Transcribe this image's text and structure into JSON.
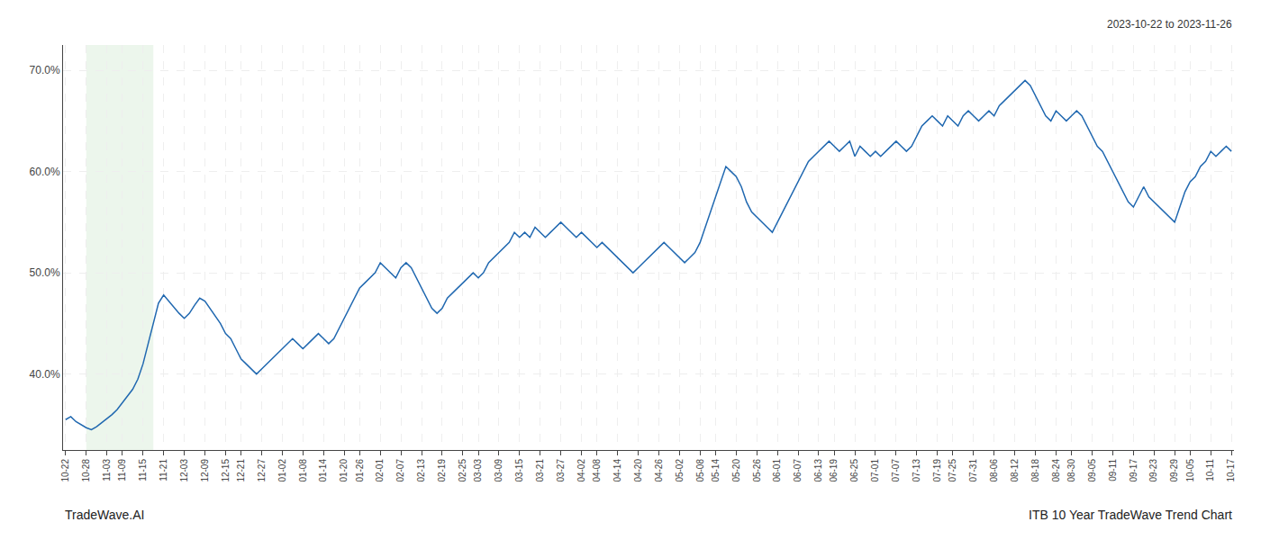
{
  "chart_data": {
    "type": "line",
    "title": "ITB 10 Year TradeWave Trend Chart",
    "subtitle": "2023-10-22 to 2023-11-26",
    "annotations": [
      "TradeWave.AI"
    ],
    "categories": [
      "10-22",
      null,
      null,
      null,
      "10-28",
      null,
      null,
      null,
      "11-03",
      null,
      null,
      "11-09",
      null,
      null,
      null,
      "11-15",
      null,
      null,
      null,
      "11-21",
      null,
      null,
      null,
      "12-03",
      null,
      null,
      null,
      "12-09",
      null,
      null,
      null,
      "12-15",
      null,
      null,
      "12-21",
      null,
      null,
      null,
      "12-27",
      null,
      null,
      null,
      "01-02",
      null,
      null,
      null,
      "01-08",
      null,
      null,
      null,
      "01-14",
      null,
      null,
      null,
      "01-20",
      null,
      null,
      "01-26",
      null,
      null,
      null,
      "02-01",
      null,
      null,
      null,
      "02-07",
      null,
      null,
      null,
      "02-13",
      null,
      null,
      null,
      "02-19",
      null,
      null,
      null,
      "02-25",
      null,
      null,
      "03-03",
      null,
      null,
      null,
      "03-09",
      null,
      null,
      null,
      "03-15",
      null,
      null,
      null,
      "03-21",
      null,
      null,
      null,
      "03-27",
      null,
      null,
      null,
      "04-02",
      null,
      null,
      "04-08",
      null,
      null,
      null,
      "04-14",
      null,
      null,
      null,
      "04-20",
      null,
      null,
      null,
      "04-26",
      null,
      null,
      null,
      "05-02",
      null,
      null,
      null,
      "05-08",
      null,
      null,
      "05-14",
      null,
      null,
      null,
      "05-20",
      null,
      null,
      null,
      "05-26",
      null,
      null,
      null,
      "06-01",
      null,
      null,
      null,
      "06-07",
      null,
      null,
      null,
      "06-13",
      null,
      null,
      "06-19",
      null,
      null,
      null,
      "06-25",
      null,
      null,
      null,
      "07-01",
      null,
      null,
      null,
      "07-07",
      null,
      null,
      null,
      "07-13",
      null,
      null,
      null,
      "07-19",
      null,
      null,
      "07-25",
      null,
      null,
      null,
      "07-31",
      null,
      null,
      null,
      "08-06",
      null,
      null,
      null,
      "08-12",
      null,
      null,
      null,
      "08-18",
      null,
      null,
      null,
      "08-24",
      null,
      null,
      "08-30",
      null,
      null,
      null,
      "09-05",
      null,
      null,
      null,
      "09-11",
      null,
      null,
      null,
      "09-17",
      null,
      null,
      null,
      "09-23",
      null,
      null,
      null,
      "09-29",
      null,
      null,
      "10-05",
      null,
      null,
      null,
      "10-11",
      null,
      null,
      null,
      "10-17"
    ],
    "values": [
      35.5,
      35.8,
      35.3,
      35.0,
      34.7,
      34.5,
      34.8,
      35.2,
      35.6,
      36.0,
      36.5,
      37.2,
      37.8,
      38.5,
      39.5,
      41.0,
      43.0,
      45.0,
      47.0,
      47.8,
      47.2,
      46.5,
      46.0,
      45.5,
      46.0,
      46.8,
      47.5,
      47.2,
      46.5,
      45.8,
      45.0,
      44.0,
      43.5,
      42.5,
      41.5,
      41.0,
      40.5,
      40.0,
      40.5,
      41.0,
      41.5,
      42.0,
      42.5,
      43.0,
      43.5,
      43.0,
      42.5,
      43.0,
      43.5,
      44.0,
      43.5,
      43.0,
      43.5,
      44.5,
      45.5,
      46.5,
      47.5,
      48.5,
      49.0,
      49.5,
      50.0,
      51.0,
      50.5,
      50.0,
      49.5,
      50.5,
      51.0,
      50.5,
      49.5,
      48.5,
      47.5,
      46.5,
      46.0,
      46.5,
      47.5,
      48.0,
      48.5,
      49.0,
      49.5,
      50.0,
      49.5,
      50.0,
      51.0,
      51.5,
      52.0,
      52.5,
      53.0,
      54.0,
      53.5,
      54.0,
      53.5,
      54.5,
      54.0,
      53.5,
      54.0,
      54.5,
      55.0,
      54.5,
      54.0,
      53.5,
      54.0,
      53.5,
      53.0,
      52.5,
      53.0,
      52.5,
      52.0,
      51.5,
      51.0,
      50.5,
      50.0,
      50.5,
      51.0,
      51.5,
      52.0,
      52.5,
      53.0,
      52.5,
      52.0,
      51.5,
      51.0,
      51.5,
      52.0,
      53.0,
      54.5,
      56.0,
      57.5,
      59.0,
      60.5,
      60.0,
      59.5,
      58.5,
      57.0,
      56.0,
      55.5,
      55.0,
      54.5,
      54.0,
      55.0,
      56.0,
      57.0,
      58.0,
      59.0,
      60.0,
      61.0,
      61.5,
      62.0,
      62.5,
      63.0,
      62.5,
      62.0,
      62.5,
      63.0,
      61.5,
      62.5,
      62.0,
      61.5,
      62.0,
      61.5,
      62.0,
      62.5,
      63.0,
      62.5,
      62.0,
      62.5,
      63.5,
      64.5,
      65.0,
      65.5,
      65.0,
      64.5,
      65.5,
      65.0,
      64.5,
      65.5,
      66.0,
      65.5,
      65.0,
      65.5,
      66.0,
      65.5,
      66.5,
      67.0,
      67.5,
      68.0,
      68.5,
      69.0,
      68.5,
      67.5,
      66.5,
      65.5,
      65.0,
      66.0,
      65.5,
      65.0,
      65.5,
      66.0,
      65.5,
      64.5,
      63.5,
      62.5,
      62.0,
      61.0,
      60.0,
      59.0,
      58.0,
      57.0,
      56.5,
      57.5,
      58.5,
      57.5,
      57.0,
      56.5,
      56.0,
      55.5,
      55.0,
      56.5,
      58.0,
      59.0,
      59.5,
      60.5,
      61.0,
      62.0,
      61.5,
      62.0,
      62.5,
      62.0
    ],
    "color": "#2068b0",
    "highlight": {
      "start": 4,
      "end": 17,
      "color": "#dff0df"
    },
    "ylim": [
      32.5,
      72.5
    ],
    "yticks": [
      {
        "value": 40.0,
        "label": "40.0%"
      },
      {
        "value": 50.0,
        "label": "50.0%"
      },
      {
        "value": 60.0,
        "label": "60.0%"
      },
      {
        "value": 70.0,
        "label": "70.0%"
      }
    ],
    "grid": true
  }
}
